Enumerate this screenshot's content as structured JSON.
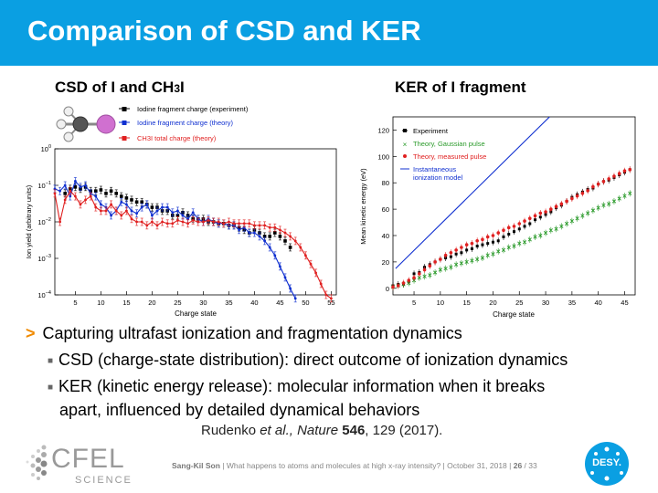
{
  "header": {
    "title": "Comparison of CSD and KER"
  },
  "left_plot": {
    "subtitle_main": "CSD of I and CH",
    "subtitle_sub": "3",
    "subtitle_tail": "I",
    "colors": {
      "experiment": "#000000",
      "theory": "#1030d0",
      "total": "#e02020"
    },
    "chart_data": {
      "type": "scatter",
      "xlabel": "Charge state",
      "ylabel": "Ion yield  (arbitrary units)",
      "x_ticks": [
        "5",
        "10",
        "15",
        "20",
        "25",
        "30",
        "35",
        "40",
        "45",
        "50",
        "55"
      ],
      "y_ticks": [
        "10^0",
        "10^-1",
        "10^-2",
        "10^-3",
        "10^-4"
      ],
      "y_tick_base": "10",
      "y_tick_exps": [
        "0",
        "−1",
        "−2",
        "−3",
        "−4"
      ],
      "xlim": [
        1,
        56
      ],
      "y_log_lim": [
        -4,
        0
      ],
      "series": [
        {
          "name": "Iodine fragment charge (experiment)",
          "key": "exp",
          "x": [
            3,
            4,
            5,
            6,
            7,
            8,
            9,
            10,
            11,
            12,
            13,
            14,
            15,
            16,
            17,
            18,
            19,
            20,
            21,
            22,
            23,
            24,
            25,
            26,
            27,
            28,
            29,
            30,
            31,
            32,
            33,
            34,
            35,
            36,
            37,
            38,
            39,
            40,
            41,
            42,
            43,
            44,
            45,
            46,
            47
          ],
          "y": [
            0.06,
            0.08,
            0.09,
            0.08,
            0.09,
            0.07,
            0.07,
            0.075,
            0.06,
            0.07,
            0.06,
            0.05,
            0.045,
            0.04,
            0.035,
            0.035,
            0.03,
            0.025,
            0.025,
            0.02,
            0.02,
            0.015,
            0.015,
            0.018,
            0.015,
            0.012,
            0.012,
            0.012,
            0.01,
            0.01,
            0.009,
            0.009,
            0.008,
            0.008,
            0.007,
            0.006,
            0.005,
            0.006,
            0.005,
            0.004,
            0.004,
            0.005,
            0.004,
            0.003,
            0.002
          ]
        },
        {
          "name": "Iodine fragment charge (theory)",
          "key": "th",
          "x": [
            1,
            2,
            3,
            4,
            5,
            6,
            7,
            8,
            9,
            10,
            11,
            12,
            13,
            14,
            15,
            16,
            17,
            18,
            19,
            20,
            21,
            22,
            23,
            24,
            25,
            26,
            27,
            28,
            29,
            30,
            31,
            32,
            33,
            34,
            35,
            36,
            37,
            38,
            39,
            40,
            41,
            42,
            43,
            44,
            45,
            46,
            47,
            48
          ],
          "y": [
            0.08,
            0.07,
            0.1,
            0.05,
            0.13,
            0.09,
            0.1,
            0.06,
            0.05,
            0.03,
            0.025,
            0.015,
            0.02,
            0.035,
            0.03,
            0.02,
            0.017,
            0.025,
            0.03,
            0.015,
            0.02,
            0.025,
            0.025,
            0.018,
            0.02,
            0.015,
            0.012,
            0.018,
            0.012,
            0.01,
            0.012,
            0.01,
            0.009,
            0.009,
            0.008,
            0.008,
            0.006,
            0.007,
            0.005,
            0.005,
            0.004,
            0.003,
            0.002,
            0.0012,
            0.0006,
            0.0003,
            0.00015,
            8e-05
          ]
        },
        {
          "name": "CH3I total charge (theory)",
          "key": "tot",
          "x": [
            1,
            2,
            3,
            4,
            5,
            6,
            7,
            8,
            9,
            10,
            11,
            12,
            13,
            14,
            15,
            16,
            17,
            18,
            19,
            20,
            21,
            22,
            23,
            24,
            25,
            26,
            27,
            28,
            29,
            30,
            31,
            32,
            33,
            34,
            35,
            36,
            37,
            38,
            39,
            40,
            41,
            42,
            43,
            44,
            45,
            46,
            47,
            48,
            49,
            50,
            51,
            52,
            53,
            54,
            55
          ],
          "y": [
            0.06,
            0.01,
            0.04,
            0.07,
            0.05,
            0.03,
            0.04,
            0.05,
            0.025,
            0.02,
            0.02,
            0.03,
            0.02,
            0.015,
            0.02,
            0.012,
            0.01,
            0.01,
            0.008,
            0.01,
            0.008,
            0.01,
            0.009,
            0.009,
            0.011,
            0.01,
            0.009,
            0.011,
            0.01,
            0.01,
            0.011,
            0.01,
            0.01,
            0.009,
            0.01,
            0.009,
            0.009,
            0.009,
            0.009,
            0.008,
            0.008,
            0.008,
            0.007,
            0.007,
            0.006,
            0.005,
            0.004,
            0.003,
            0.002,
            0.0012,
            0.0007,
            0.0004,
            0.0002,
            0.0001,
            8e-05
          ]
        }
      ]
    }
  },
  "right_plot": {
    "subtitle": "KER of I fragment",
    "colors": {
      "experiment": "#000000",
      "gauss": "#2a9a2a",
      "measured": "#e02020",
      "inst": "#1030d0"
    },
    "chart_data": {
      "type": "scatter",
      "xlabel": "Charge state",
      "ylabel": "Mean kinetic energy (eV)",
      "x_ticks": [
        "5",
        "10",
        "15",
        "20",
        "25",
        "30",
        "35",
        "40",
        "45"
      ],
      "y_ticks": [
        "0",
        "20",
        "40",
        "60",
        "80",
        "100",
        "120"
      ],
      "xlim": [
        1,
        47
      ],
      "ylim": [
        -5,
        130
      ],
      "legend_inst_line1": "Instantaneous",
      "legend_inst_line2": "ionization model",
      "series": [
        {
          "name": "Experiment",
          "key": "exp",
          "x": [
            1,
            2,
            3,
            4,
            5,
            6,
            7,
            8,
            9,
            10,
            11,
            12,
            13,
            14,
            15,
            16,
            17,
            18,
            19,
            20,
            21,
            22,
            23,
            24,
            25,
            26,
            27,
            28,
            29,
            30,
            31,
            32,
            33,
            34,
            35,
            36,
            37,
            38,
            39,
            40,
            41,
            42,
            43,
            44,
            45,
            46
          ],
          "y": [
            2,
            3,
            3,
            5,
            11,
            12,
            16,
            18,
            20,
            22,
            23,
            24,
            26,
            27,
            29,
            30,
            32,
            33,
            34,
            35,
            36,
            39,
            41,
            43,
            45,
            47,
            49,
            52,
            54,
            56,
            58,
            61,
            63,
            66,
            69,
            71,
            73,
            75,
            76,
            79,
            81,
            82,
            84,
            86,
            88,
            90
          ]
        },
        {
          "name": "Theory, Gaussian pulse",
          "key": "gauss",
          "x": [
            1,
            2,
            3,
            4,
            5,
            6,
            7,
            8,
            9,
            10,
            11,
            12,
            13,
            14,
            15,
            16,
            17,
            18,
            19,
            20,
            21,
            22,
            23,
            24,
            25,
            26,
            27,
            28,
            29,
            30,
            31,
            32,
            33,
            34,
            35,
            36,
            37,
            38,
            39,
            40,
            41,
            42,
            43,
            44,
            45,
            46
          ],
          "y": [
            1,
            2,
            3,
            4,
            6,
            8,
            9,
            10,
            12,
            14,
            15,
            16,
            18,
            19,
            20,
            21,
            22,
            23,
            25,
            26,
            28,
            29,
            31,
            32,
            34,
            35,
            37,
            39,
            40,
            42,
            44,
            45,
            47,
            49,
            51,
            53,
            55,
            57,
            59,
            61,
            63,
            64,
            66,
            68,
            70,
            72
          ]
        },
        {
          "name": "Theory, measured pulse",
          "key": "meas",
          "x": [
            1,
            2,
            3,
            4,
            5,
            6,
            7,
            8,
            9,
            10,
            11,
            12,
            13,
            14,
            15,
            16,
            17,
            18,
            19,
            20,
            21,
            22,
            23,
            24,
            25,
            26,
            27,
            28,
            29,
            30,
            31,
            32,
            33,
            34,
            35,
            36,
            37,
            38,
            39,
            40,
            41,
            42,
            43,
            44,
            45,
            46
          ],
          "y": [
            1,
            2,
            4,
            6,
            8,
            11,
            14,
            17,
            20,
            22,
            25,
            27,
            29,
            31,
            33,
            34,
            36,
            37,
            39,
            40,
            42,
            44,
            46,
            47,
            49,
            51,
            53,
            55,
            57,
            58,
            60,
            62,
            64,
            66,
            68,
            70,
            72,
            74,
            77,
            79,
            81,
            83,
            85,
            87,
            89,
            90
          ]
        },
        {
          "name": "Instantaneous ionization model",
          "key": "inst",
          "x": [
            1.5,
            31.5
          ],
          "y": [
            15,
            133
          ]
        }
      ]
    }
  },
  "bullets": {
    "main": "Capturing ultrafast ionization and fragmentation dynamics",
    "sub1": "CSD (charge-state distribution): direct outcome of ionization dynamics",
    "sub2_line1": "KER (kinetic energy release): molecular information when it breaks",
    "sub2_line2": "apart, influenced by detailed dynamical behaviors"
  },
  "citation": {
    "authors": "Rudenko ",
    "etal": "et al., Nature ",
    "volume": "546",
    "rest": ", 129 (2017)."
  },
  "footer": {
    "author": "Sang-Kil Son",
    "text": " | What happens to atoms and molecules at high x-ray intensity? | October 31, 2018 | ",
    "page": "26",
    "total": " / 33"
  },
  "logos": {
    "cfel_main": "CFEL",
    "cfel_sub": "SCIENCE",
    "desy": "DESY."
  }
}
